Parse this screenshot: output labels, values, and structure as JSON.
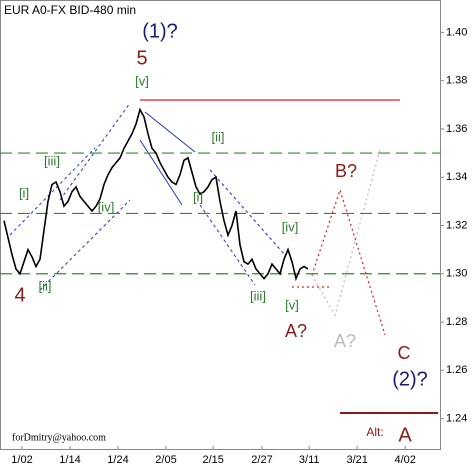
{
  "chart_data": {
    "type": "line",
    "title": "EUR A0-FX BID-480 min",
    "credit": "forDmitry@yahoo.com",
    "color": "#000000",
    "x": [
      0,
      1,
      2,
      3,
      4,
      5,
      6,
      7,
      8,
      9,
      10,
      11,
      12,
      13,
      14,
      15,
      16,
      17,
      18,
      19,
      20,
      21,
      22,
      23,
      24,
      25,
      26,
      27,
      28,
      29,
      30,
      31,
      32,
      33,
      34,
      35,
      36,
      37,
      38,
      39,
      40,
      41,
      42,
      43,
      44,
      45,
      46,
      47,
      48,
      49,
      50,
      51,
      52,
      53,
      54,
      55,
      56,
      57,
      58,
      59,
      60,
      61,
      62,
      63,
      64,
      65,
      66,
      67,
      68,
      69,
      70,
      71,
      72,
      73,
      74,
      75,
      76
    ],
    "values": [
      1.322,
      1.315,
      1.308,
      1.302,
      1.3,
      1.305,
      1.31,
      1.307,
      1.303,
      1.306,
      1.318,
      1.33,
      1.337,
      1.338,
      1.334,
      1.328,
      1.33,
      1.334,
      1.336,
      1.332,
      1.33,
      1.328,
      1.326,
      1.328,
      1.331,
      1.337,
      1.341,
      1.344,
      1.346,
      1.348,
      1.352,
      1.355,
      1.358,
      1.362,
      1.368,
      1.365,
      1.358,
      1.352,
      1.35,
      1.346,
      1.343,
      1.34,
      1.338,
      1.337,
      1.341,
      1.347,
      1.348,
      1.342,
      1.336,
      1.333,
      1.334,
      1.336,
      1.339,
      1.34,
      1.33,
      1.322,
      1.316,
      1.32,
      1.326,
      1.312,
      1.305,
      1.304,
      1.306,
      1.302,
      1.3,
      1.298,
      1.3,
      1.304,
      1.302,
      1.3,
      1.306,
      1.31,
      1.305,
      1.298,
      1.302,
      1.303,
      1.302
    ],
    "xlim": [
      -1,
      109
    ],
    "xticks": [
      {
        "value": 4.5,
        "label": "1/02"
      },
      {
        "value": 16.5,
        "label": "1/14"
      },
      {
        "value": 28.5,
        "label": "1/24"
      },
      {
        "value": 40.5,
        "label": "2/05"
      },
      {
        "value": 52.3,
        "label": "2/15"
      },
      {
        "value": 64.5,
        "label": "2/27"
      },
      {
        "value": 76.3,
        "label": "3/11"
      },
      {
        "value": 88.3,
        "label": "3/21"
      },
      {
        "value": 100.3,
        "label": "4/02"
      }
    ],
    "ylim": [
      1.227,
      1.413
    ],
    "yticks": [
      {
        "value": 1.24,
        "label": "1.24"
      },
      {
        "value": 1.26,
        "label": "1.26"
      },
      {
        "value": 1.28,
        "label": "1.28"
      },
      {
        "value": 1.3,
        "label": "1.30"
      },
      {
        "value": 1.32,
        "label": "1.32"
      },
      {
        "value": 1.34,
        "label": "1.34"
      },
      {
        "value": 1.36,
        "label": "1.36"
      },
      {
        "value": 1.38,
        "label": "1.38"
      },
      {
        "value": 1.4,
        "label": "1.40"
      }
    ],
    "levels": [
      1.35,
      1.325,
      1.3
    ],
    "level_color": "#2e8b2e",
    "resistance": 1.372,
    "resistance_color": "#e02020",
    "annotations": [
      {
        "text": "(1)?",
        "color": "#1a1a7a"
      },
      {
        "text": "5",
        "color": "#8b1a1a"
      },
      {
        "text": "[v]",
        "color": "#2e7d2e"
      },
      {
        "text": "[iii]",
        "color": "#2e7d2e"
      },
      {
        "text": "[ii]",
        "color": "#2e7d2e"
      },
      {
        "text": "[i]",
        "color": "#2e7d2e"
      },
      {
        "text": "[iv]",
        "color": "#2e7d2e"
      },
      {
        "text": "[i]",
        "color": "#2e7d2e"
      },
      {
        "text": "[iv]",
        "color": "#2e7d2e"
      },
      {
        "text": "[ii]",
        "color": "#2e7d2e"
      },
      {
        "text": "4",
        "color": "#8b1a1a"
      },
      {
        "text": "[iii]",
        "color": "#2e7d2e"
      },
      {
        "text": "[v]",
        "color": "#2e7d2e"
      },
      {
        "text": "B?",
        "color": "#8b1a1a"
      },
      {
        "text": "A?",
        "color": "#8b1a1a"
      },
      {
        "text": "A?",
        "color": "#bbbbbb"
      },
      {
        "text": "C",
        "color": "#8b1a1a"
      },
      {
        "text": "(2)?",
        "color": "#1a1a7a"
      },
      {
        "text": "Alt:",
        "color": "#8b1a1a"
      },
      {
        "text": "A",
        "color": "#8b1a1a"
      }
    ]
  }
}
